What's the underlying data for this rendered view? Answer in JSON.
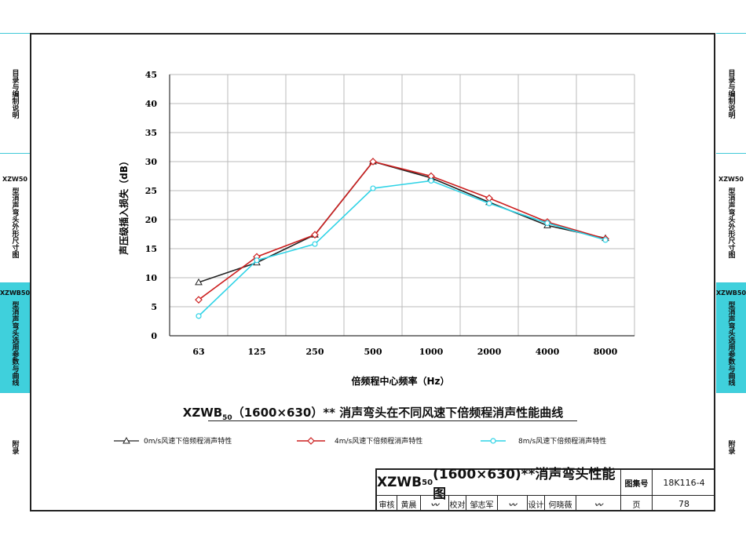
{
  "side_tabs": {
    "left": [
      {
        "code": "",
        "label": "目录与编制说明"
      },
      {
        "code": "XZW50",
        "label": "型消声弯头外形尺寸图"
      },
      {
        "code": "XZWB50",
        "label": "型消声弯头选用参数与曲线",
        "active": true
      },
      {
        "code": "",
        "label": "附录"
      }
    ],
    "right": [
      {
        "code": "",
        "label": "目录与编制说明"
      },
      {
        "code": "XZW50",
        "label": "型消声弯头外形尺寸图"
      },
      {
        "code": "XZWB50",
        "label": "型消声弯头选用参数与曲线",
        "active": true
      },
      {
        "code": "",
        "label": "附录"
      }
    ]
  },
  "chart_data": {
    "type": "line",
    "categories": [
      "63",
      "125",
      "250",
      "500",
      "1000",
      "2000",
      "4000",
      "8000"
    ],
    "series": [
      {
        "name": "0m/s风速下倍频程消声特性",
        "color": "#222222",
        "marker": "triangle",
        "values": [
          9.2,
          12.6,
          17.4,
          30.0,
          27.2,
          23.0,
          19.0,
          16.8
        ]
      },
      {
        "name": "4m/s风速下倍频程消声特性",
        "color": "#cc1f1f",
        "marker": "diamond",
        "values": [
          6.2,
          13.6,
          17.4,
          30.0,
          27.5,
          23.7,
          19.6,
          16.7
        ]
      },
      {
        "name": "8m/s风速下倍频程消声特性",
        "color": "#2fd3e6",
        "marker": "circle",
        "values": [
          3.4,
          13.0,
          15.8,
          25.4,
          26.7,
          22.8,
          19.4,
          16.5
        ]
      }
    ],
    "yticks": [
      "45",
      "40",
      "35",
      "30",
      "25",
      "20",
      "15",
      "10",
      "5",
      "0"
    ],
    "ylim": [
      0,
      45
    ],
    "ylabel": "声压级插入损失（dB）",
    "xlabel": "倍频程中心频率（Hz）",
    "title_prefix": "XZWB",
    "title_sub": "50",
    "title_rest": "（1600×630）** 消声弯头在不同风速下倍频程消声性能曲线",
    "grid": true
  },
  "title_block": {
    "title_prefix": "XZWB",
    "title_sub": "50",
    "title_rest": "(1600×630)**消声弯头性能图",
    "atlas_label": "图集号",
    "atlas_no": "18K116-4",
    "review_label": "审核",
    "reviewer": "黄晨",
    "check_label": "校对",
    "checker": "邹志军",
    "design_label": "设计",
    "designer": "何晓薇",
    "page_label": "页",
    "page_no": "78"
  }
}
